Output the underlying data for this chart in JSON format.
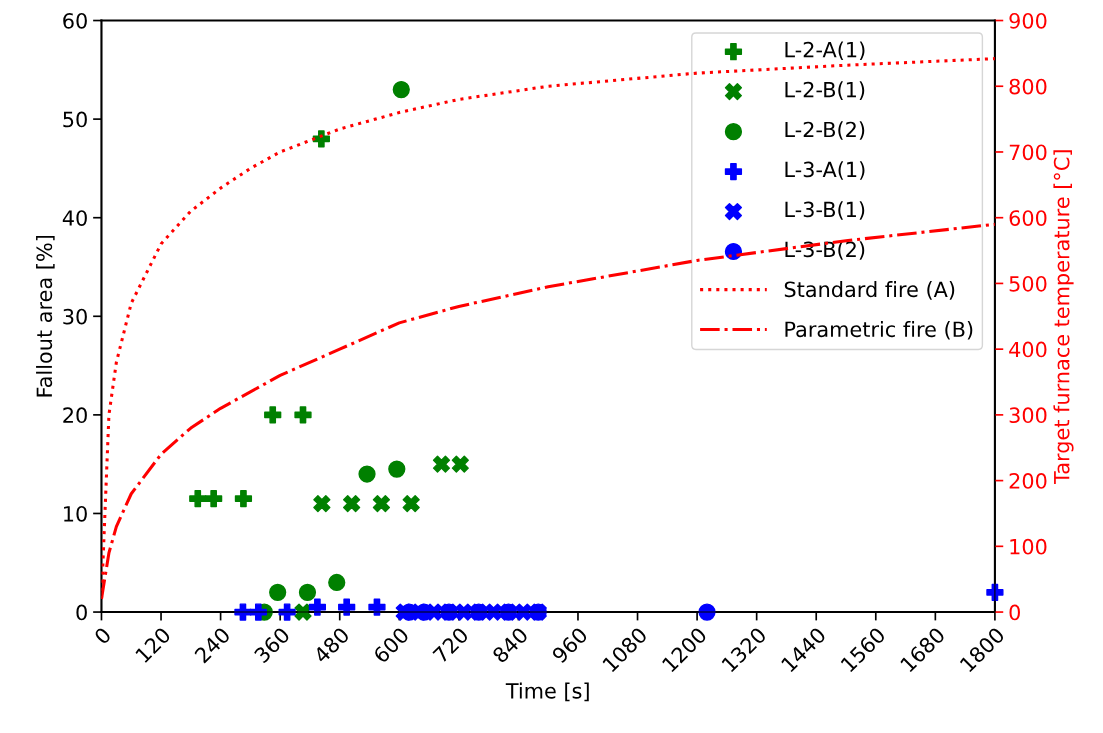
{
  "chart_data": {
    "type": "scatter",
    "xlabel": "Time [s]",
    "ylabel": "Fallout area [%]",
    "y2label": "Target furnace temperature [°C]",
    "xlim": [
      0,
      1800
    ],
    "xticks": [
      0,
      120,
      240,
      360,
      480,
      600,
      720,
      840,
      960,
      1080,
      1200,
      1320,
      1440,
      1560,
      1680,
      1800
    ],
    "ylim": [
      0,
      60
    ],
    "yticks": [
      0,
      10,
      20,
      30,
      40,
      50,
      60
    ],
    "y2lim": [
      0,
      900
    ],
    "y2ticks": [
      0,
      100,
      200,
      300,
      400,
      500,
      600,
      700,
      800,
      900
    ],
    "legend": "top right",
    "grid": false,
    "series": [
      {
        "name": "L-2-A(1)",
        "color": "#008000",
        "marker": "plus",
        "x": [
          194,
          226,
          286,
          345,
          406,
          443
        ],
        "values": [
          11.5,
          11.5,
          11.5,
          20,
          20,
          48
        ]
      },
      {
        "name": "L-2-B(1)",
        "color": "#008000",
        "marker": "cross",
        "x": [
          406,
          444,
          504,
          564,
          624,
          685,
          723
        ],
        "values": [
          0,
          11,
          11,
          11,
          11,
          15,
          15
        ]
      },
      {
        "name": "L-2-B(2)",
        "color": "#008000",
        "marker": "circle",
        "x": [
          328,
          355,
          415,
          474,
          535,
          595,
          604
        ],
        "values": [
          0,
          2,
          2,
          3,
          14,
          14.5,
          53
        ]
      },
      {
        "name": "L-3-A(1)",
        "color": "#0000ff",
        "marker": "plus",
        "x": [
          285,
          316,
          374,
          435,
          494,
          555,
          1800
        ],
        "values": [
          0,
          0,
          0,
          0.5,
          0.5,
          0.5,
          2
        ]
      },
      {
        "name": "L-3-B(1)",
        "color": "#0000ff",
        "marker": "cross",
        "x": [
          610,
          640,
          670,
          700,
          730,
          760,
          790,
          820,
          850,
          880
        ],
        "values": [
          0,
          0,
          0,
          0,
          0,
          0,
          0,
          0,
          0,
          0
        ]
      },
      {
        "name": "L-3-B(2)",
        "color": "#0000ff",
        "marker": "circle",
        "x": [
          620,
          650,
          700,
          760,
          820,
          880,
          1220
        ],
        "values": [
          0,
          0,
          0,
          0,
          0,
          0,
          0
        ]
      },
      {
        "name": "Standard fire (A)",
        "type": "line",
        "axis": "y2",
        "color": "#ff0000",
        "line_style": "dotted",
        "x": [
          0,
          15,
          30,
          60,
          120,
          180,
          240,
          300,
          360,
          480,
          600,
          720,
          900,
          1200,
          1500,
          1800
        ],
        "values": [
          20,
          300,
          380,
          470,
          560,
          610,
          645,
          675,
          700,
          735,
          760,
          780,
          800,
          820,
          832,
          842
        ]
      },
      {
        "name": "Parametric fire (B)",
        "type": "line",
        "axis": "y2",
        "color": "#ff0000",
        "line_style": "dashdot",
        "x": [
          0,
          15,
          30,
          60,
          120,
          180,
          240,
          360,
          480,
          600,
          720,
          900,
          1200,
          1500,
          1800
        ],
        "values": [
          20,
          90,
          130,
          180,
          240,
          280,
          310,
          360,
          400,
          440,
          465,
          495,
          535,
          565,
          590
        ]
      }
    ]
  }
}
